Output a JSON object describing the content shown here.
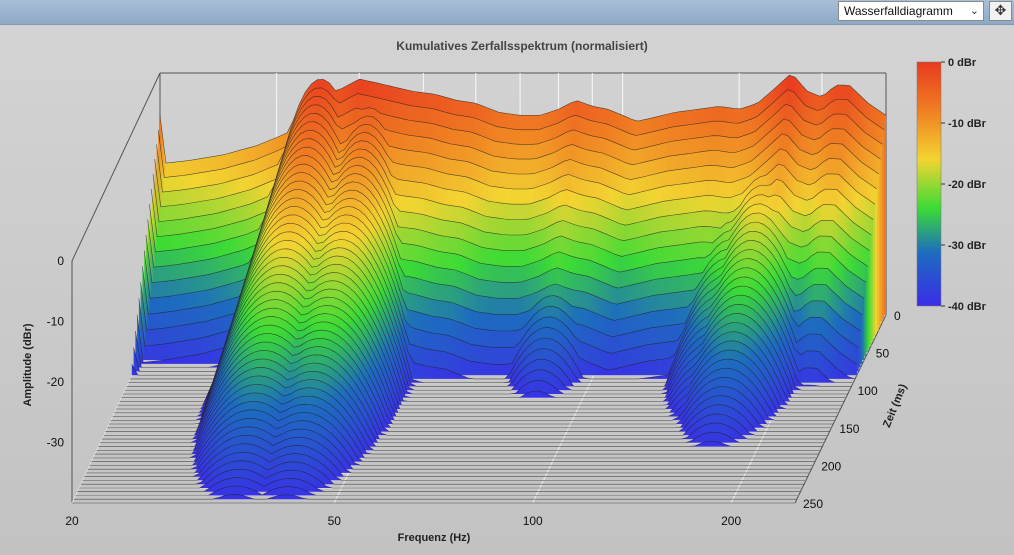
{
  "toolbar": {
    "view_select_value": "Wasserfalldiagramm",
    "move_icon": "move-icon"
  },
  "chart_data": {
    "type": "waterfall",
    "title": "Kumulatives Zerfallsspektrum (normalisiert)",
    "xlabel": "Frequenz (Hz)",
    "ylabel": "Amplitude (dBr)",
    "zlabel": "Zeit (ms)",
    "x_scale": "log",
    "xlim": [
      20,
      250
    ],
    "x_ticks": [
      "20",
      "50",
      "100",
      "200"
    ],
    "x_tick_values": [
      20,
      50,
      100,
      200
    ],
    "ylim": [
      -40,
      0
    ],
    "y_ticks": [
      "0",
      "-10",
      "-20",
      "-30"
    ],
    "y_tick_values": [
      0,
      -10,
      -20,
      -30
    ],
    "zlim": [
      0,
      250
    ],
    "z_ticks": [
      "0",
      "50",
      "100",
      "150",
      "200",
      "250"
    ],
    "z_tick_values": [
      0,
      50,
      100,
      150,
      200,
      250
    ],
    "colorbar": {
      "ticks": [
        "0 dBr",
        "-10 dBr",
        "-20 dBr",
        "-30 dBr",
        "-40 dBr"
      ],
      "tick_values": [
        0,
        -10,
        -20,
        -30,
        -40
      ],
      "colors": [
        "#e83a1f",
        "#f07f22",
        "#f3d431",
        "#3bdb35",
        "#1d6cbf",
        "#3a2de8"
      ]
    },
    "grid": true,
    "slice_step_ms": 5,
    "initial_response": {
      "freq_hz": [
        20,
        22,
        25,
        28,
        31,
        34,
        37,
        40,
        44,
        48,
        52,
        56,
        60,
        65,
        70,
        75,
        80,
        85,
        90,
        95,
        100,
        105,
        110,
        120,
        130,
        140,
        150,
        160,
        170,
        180,
        190,
        200,
        210,
        220,
        235,
        250
      ],
      "level_dbr": [
        -15,
        -14.5,
        -13.5,
        -12,
        -10,
        -7,
        -3,
        -1,
        -2,
        -3,
        -3.5,
        -4.5,
        -5,
        -6.5,
        -7,
        -7,
        -6,
        -4.5,
        -5.5,
        -6,
        -7,
        -8,
        -7.5,
        -6.5,
        -6,
        -5.5,
        -6,
        -5,
        -2.5,
        0,
        -3,
        -4,
        -2,
        -2,
        -5,
        -7
      ]
    },
    "resonances": [
      {
        "freq_hz": 35,
        "peak_dbr": -1,
        "decays_to_ms": 250
      },
      {
        "freq_hz": 42,
        "peak_dbr": -3,
        "decays_to_ms": 250
      },
      {
        "freq_hz": 85,
        "peak_dbr": -14,
        "decays_to_ms": 115
      },
      {
        "freq_hz": 155,
        "peak_dbr": -12,
        "decays_to_ms": 150
      },
      {
        "freq_hz": 170,
        "peak_dbr": -8,
        "decays_to_ms": 180
      }
    ]
  }
}
